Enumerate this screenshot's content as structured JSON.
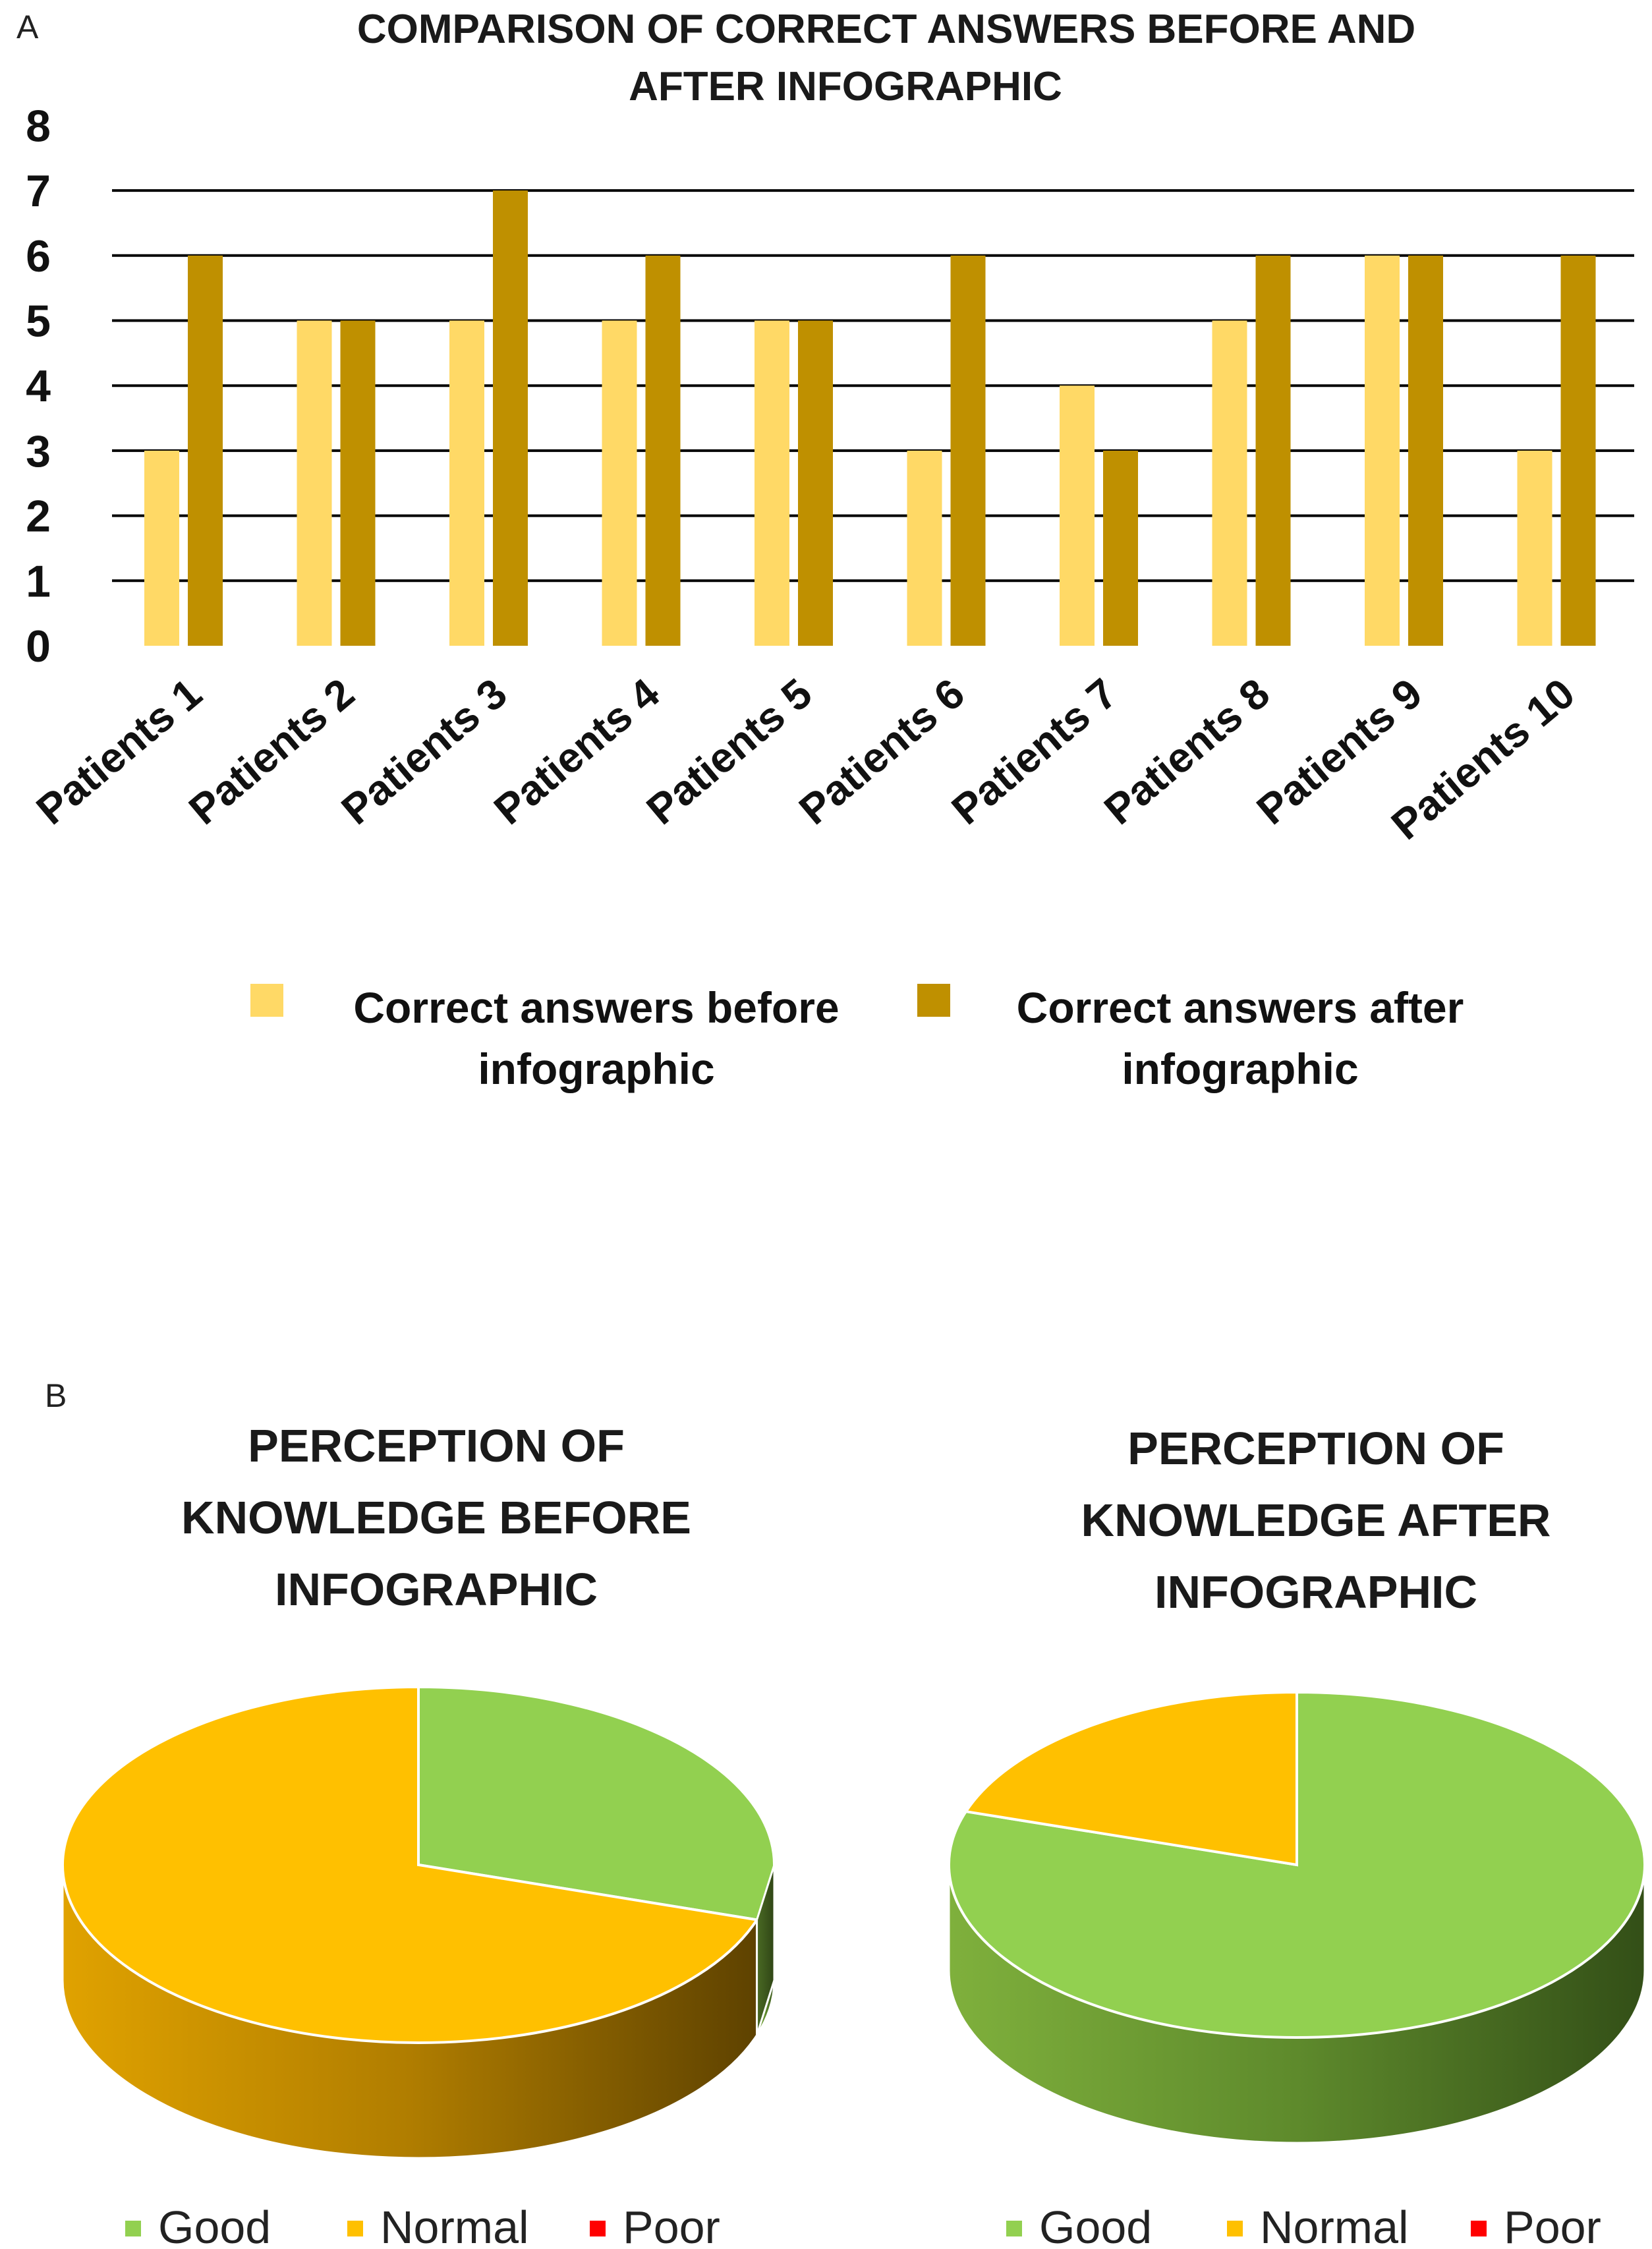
{
  "panel_a_label": "A",
  "panel_b_label": "B",
  "chart_data": [
    {
      "type": "bar",
      "title_lines": [
        "COMPARISON OF CORRECT ANSWERS BEFORE AND",
        "AFTER INFOGRAPHIC"
      ],
      "categories": [
        "Patients 1",
        "Patients 2",
        "Patients 3",
        "Patients 4",
        "Patients 5",
        "Patients 6",
        "Patients 7",
        "Patients 8",
        "Patients 9",
        "Patients 10"
      ],
      "series": [
        {
          "name_lines": [
            "Correct answers before",
            "infographic"
          ],
          "color": "#FFD966",
          "values": [
            3,
            5,
            5,
            5,
            5,
            3,
            4,
            5,
            6,
            3
          ]
        },
        {
          "name_lines": [
            "Correct answers after",
            "infographic"
          ],
          "color": "#BF9000",
          "values": [
            6,
            5,
            7,
            6,
            5,
            6,
            3,
            6,
            6,
            6
          ]
        }
      ],
      "ylim": [
        0,
        8
      ],
      "yticks": [
        0,
        1,
        2,
        3,
        4,
        5,
        6,
        7,
        8
      ],
      "grid": true,
      "legend_position": "bottom"
    },
    {
      "type": "pie",
      "style": "3d",
      "title_lines": [
        "PERCEPTION OF",
        "KNOWLEDGE BEFORE",
        "INFOGRAPHIC"
      ],
      "labels": [
        "Good",
        "Normal",
        "Poor"
      ],
      "values": [
        30,
        70,
        0
      ],
      "colors": [
        "#92D050",
        "#FFC000",
        "#FF0000"
      ],
      "legend_position": "bottom"
    },
    {
      "type": "pie",
      "style": "3d",
      "title_lines": [
        "PERCEPTION OF",
        "KNOWLEDGE AFTER",
        "INFOGRAPHIC"
      ],
      "labels": [
        "Good",
        "Normal",
        "Poor"
      ],
      "values": [
        80,
        20,
        0
      ],
      "colors": [
        "#92D050",
        "#FFC000",
        "#FF0000"
      ],
      "legend_position": "bottom"
    }
  ]
}
